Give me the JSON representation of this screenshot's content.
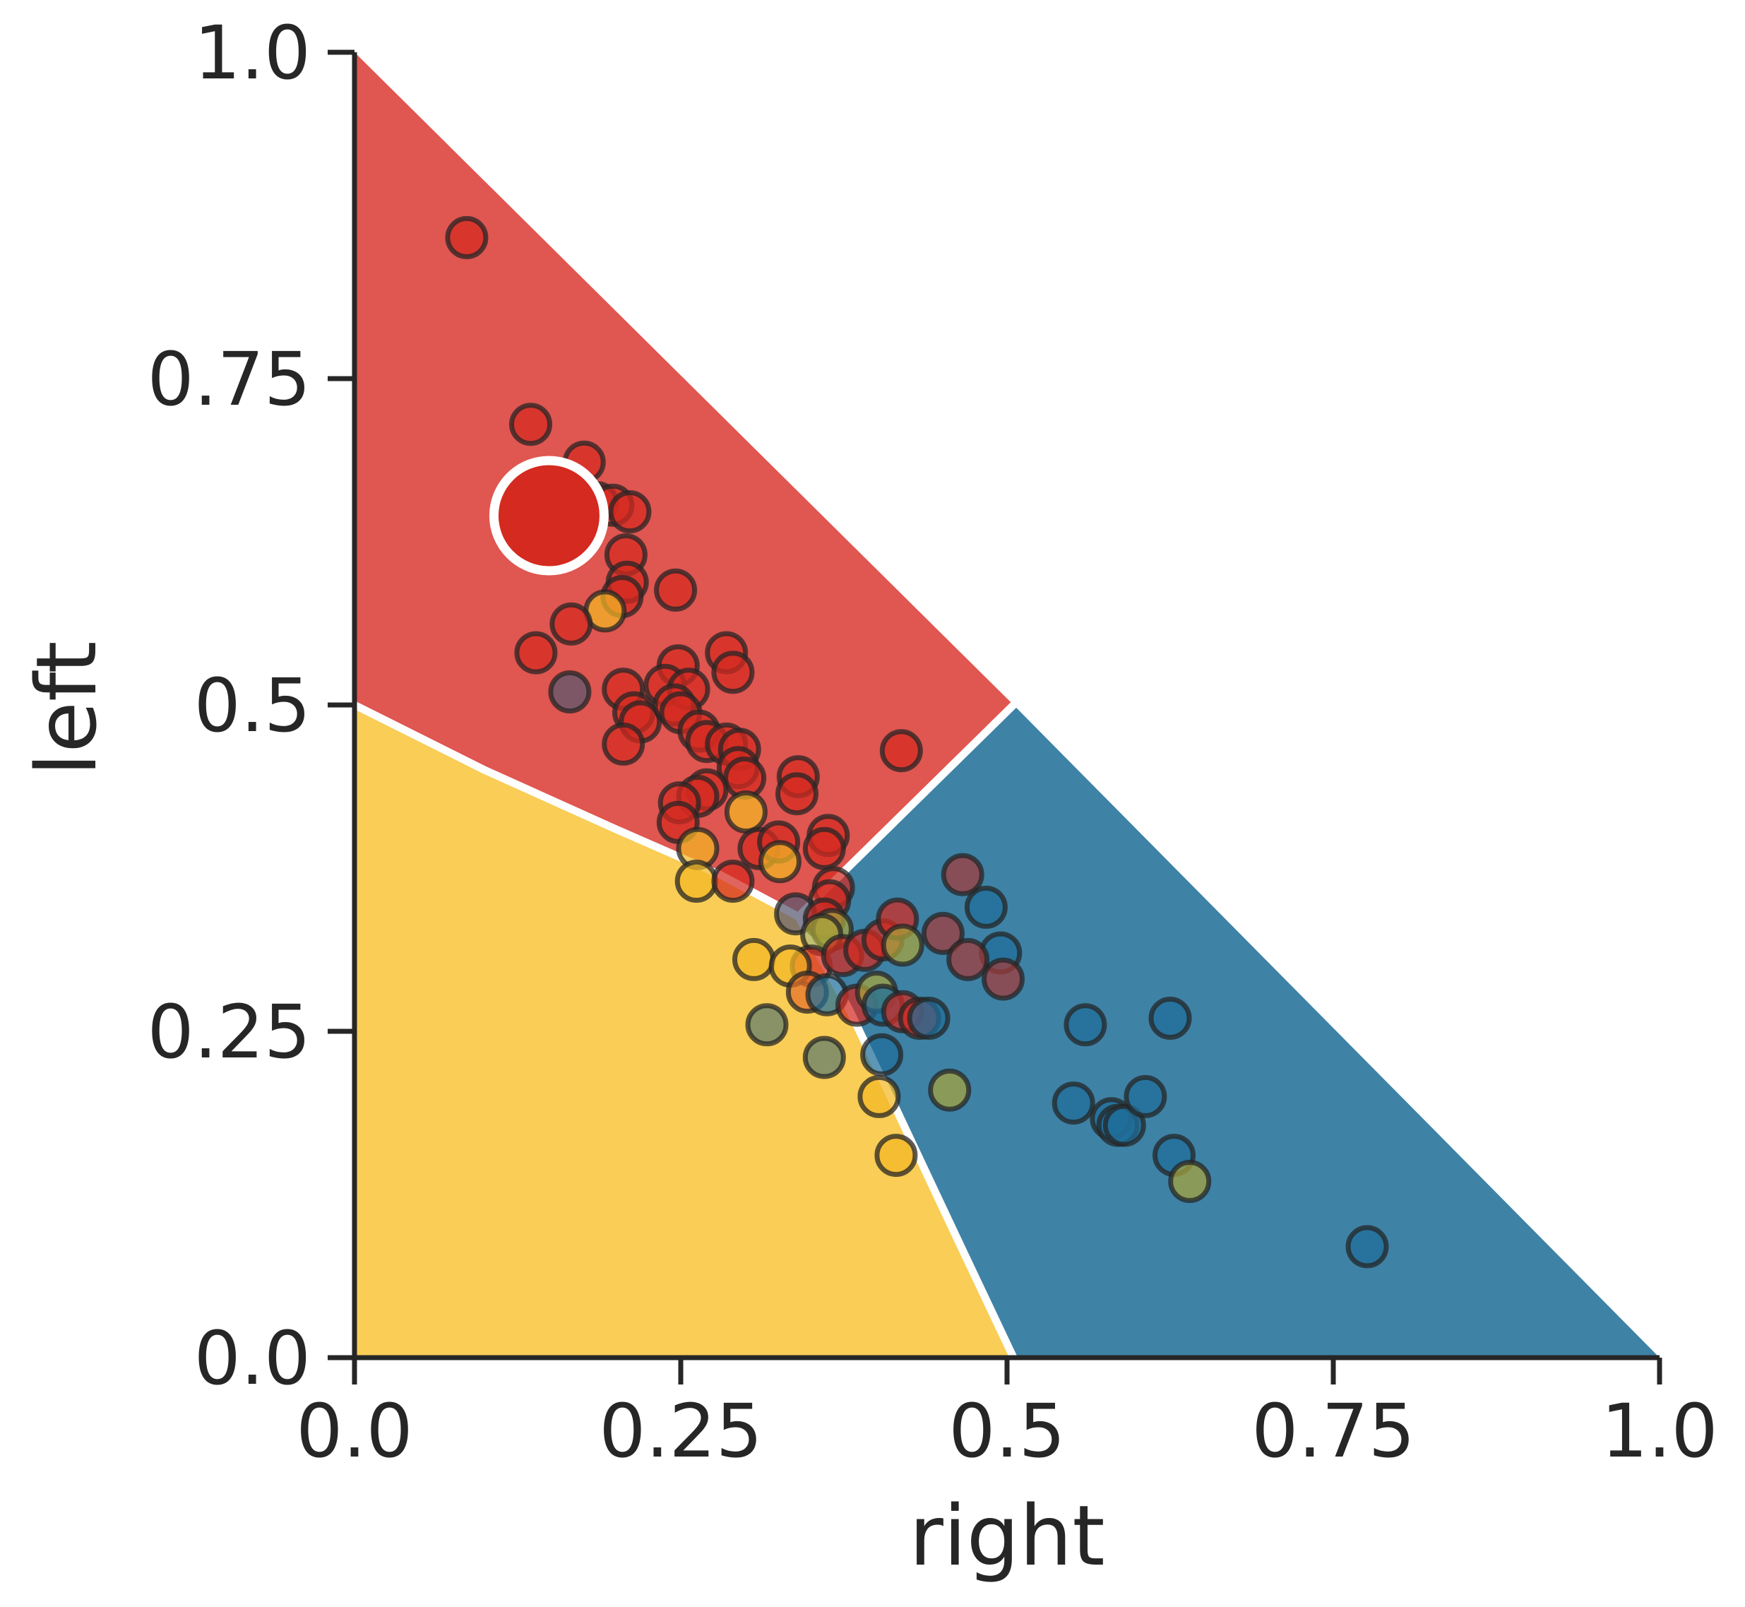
{
  "chart_data": {
    "type": "scatter",
    "title": "",
    "xlabel": "right",
    "ylabel": "left",
    "xlim": [
      0,
      1
    ],
    "ylim": [
      0,
      1
    ],
    "xticks": [
      "0.0",
      "0.25",
      "0.5",
      "0.75",
      "1.0"
    ],
    "yticks": [
      "0.0",
      "0.25",
      "0.5",
      "0.75",
      "1.0"
    ],
    "grid": false,
    "legend": "none",
    "colors": {
      "left": "#e05650",
      "mid": "#f9cd56",
      "right": "#3e82a6",
      "boundary": "#ffffff",
      "point_red": "#d42a20",
      "point_yellow": "#f2b724",
      "point_blue": "#1f6e9a",
      "point_dark": "#585870",
      "point_olive": "#a8a53c",
      "point_green": "#5c7c6c",
      "point_orange": "#e36f2a",
      "point_darkred": "#a43a3a",
      "marker_edge": "#262626"
    },
    "region_boundaries": {
      "left_mid": [
        [
          0,
          0.5
        ],
        [
          0.1,
          0.45
        ],
        [
          0.2,
          0.405
        ],
        [
          0.28,
          0.37
        ],
        [
          0.34,
          0.338
        ]
      ],
      "left_right": [
        [
          0.34,
          0.338
        ],
        [
          0.505,
          0.5
        ]
      ],
      "mid_right": [
        [
          0.34,
          0.338
        ],
        [
          0.38,
          0.265
        ],
        [
          0.42,
          0.18
        ],
        [
          0.46,
          0.095
        ],
        [
          0.505,
          0.0
        ]
      ]
    },
    "highlight_point": {
      "x": 0.149,
      "y": 0.645,
      "color": "#d42a20"
    },
    "points": [
      {
        "x": 0.086,
        "y": 0.858,
        "c": "point_red"
      },
      {
        "x": 0.135,
        "y": 0.715,
        "c": "point_red"
      },
      {
        "x": 0.176,
        "y": 0.686,
        "c": "point_red"
      },
      {
        "x": 0.186,
        "y": 0.655,
        "c": "point_red"
      },
      {
        "x": 0.198,
        "y": 0.653,
        "c": "point_red"
      },
      {
        "x": 0.211,
        "y": 0.648,
        "c": "point_red"
      },
      {
        "x": 0.208,
        "y": 0.615,
        "c": "point_red"
      },
      {
        "x": 0.209,
        "y": 0.594,
        "c": "point_red"
      },
      {
        "x": 0.205,
        "y": 0.583,
        "c": "point_red"
      },
      {
        "x": 0.246,
        "y": 0.588,
        "c": "point_red"
      },
      {
        "x": 0.192,
        "y": 0.572,
        "c": "point_yellow"
      },
      {
        "x": 0.166,
        "y": 0.562,
        "c": "point_red"
      },
      {
        "x": 0.139,
        "y": 0.54,
        "c": "point_red"
      },
      {
        "x": 0.165,
        "y": 0.51,
        "c": "point_dark"
      },
      {
        "x": 0.206,
        "y": 0.512,
        "c": "point_red"
      },
      {
        "x": 0.214,
        "y": 0.494,
        "c": "point_red"
      },
      {
        "x": 0.219,
        "y": 0.487,
        "c": "point_red"
      },
      {
        "x": 0.206,
        "y": 0.47,
        "c": "point_red"
      },
      {
        "x": 0.248,
        "y": 0.53,
        "c": "point_red"
      },
      {
        "x": 0.238,
        "y": 0.515,
        "c": "point_red"
      },
      {
        "x": 0.256,
        "y": 0.512,
        "c": "point_red"
      },
      {
        "x": 0.245,
        "y": 0.5,
        "c": "point_red"
      },
      {
        "x": 0.25,
        "y": 0.494,
        "c": "point_red"
      },
      {
        "x": 0.285,
        "y": 0.54,
        "c": "point_red"
      },
      {
        "x": 0.29,
        "y": 0.525,
        "c": "point_red"
      },
      {
        "x": 0.264,
        "y": 0.48,
        "c": "point_red"
      },
      {
        "x": 0.27,
        "y": 0.472,
        "c": "point_red"
      },
      {
        "x": 0.285,
        "y": 0.47,
        "c": "point_red"
      },
      {
        "x": 0.295,
        "y": 0.466,
        "c": "point_red"
      },
      {
        "x": 0.294,
        "y": 0.452,
        "c": "point_red"
      },
      {
        "x": 0.299,
        "y": 0.444,
        "c": "point_red"
      },
      {
        "x": 0.27,
        "y": 0.435,
        "c": "point_red"
      },
      {
        "x": 0.263,
        "y": 0.43,
        "c": "point_red"
      },
      {
        "x": 0.249,
        "y": 0.425,
        "c": "point_red"
      },
      {
        "x": 0.248,
        "y": 0.41,
        "c": "point_red"
      },
      {
        "x": 0.3,
        "y": 0.418,
        "c": "point_yellow"
      },
      {
        "x": 0.34,
        "y": 0.445,
        "c": "point_red"
      },
      {
        "x": 0.339,
        "y": 0.432,
        "c": "point_red"
      },
      {
        "x": 0.419,
        "y": 0.465,
        "c": "point_red"
      },
      {
        "x": 0.263,
        "y": 0.39,
        "c": "point_yellow"
      },
      {
        "x": 0.262,
        "y": 0.365,
        "c": "point_yellow"
      },
      {
        "x": 0.29,
        "y": 0.365,
        "c": "point_red"
      },
      {
        "x": 0.31,
        "y": 0.39,
        "c": "point_red"
      },
      {
        "x": 0.325,
        "y": 0.395,
        "c": "point_red"
      },
      {
        "x": 0.326,
        "y": 0.38,
        "c": "point_yellow"
      },
      {
        "x": 0.363,
        "y": 0.4,
        "c": "point_red"
      },
      {
        "x": 0.36,
        "y": 0.39,
        "c": "point_red"
      },
      {
        "x": 0.367,
        "y": 0.36,
        "c": "point_red"
      },
      {
        "x": 0.364,
        "y": 0.35,
        "c": "point_red"
      },
      {
        "x": 0.338,
        "y": 0.34,
        "c": "point_dark"
      },
      {
        "x": 0.36,
        "y": 0.336,
        "c": "point_red"
      },
      {
        "x": 0.366,
        "y": 0.328,
        "c": "point_olive"
      },
      {
        "x": 0.358,
        "y": 0.324,
        "c": "point_olive"
      },
      {
        "x": 0.35,
        "y": 0.3,
        "c": "point_red"
      },
      {
        "x": 0.374,
        "y": 0.308,
        "c": "point_red"
      },
      {
        "x": 0.391,
        "y": 0.312,
        "c": "point_red"
      },
      {
        "x": 0.405,
        "y": 0.32,
        "c": "point_red"
      },
      {
        "x": 0.416,
        "y": 0.336,
        "c": "point_red"
      },
      {
        "x": 0.42,
        "y": 0.316,
        "c": "point_olive"
      },
      {
        "x": 0.306,
        "y": 0.305,
        "c": "point_yellow"
      },
      {
        "x": 0.334,
        "y": 0.3,
        "c": "point_yellow"
      },
      {
        "x": 0.347,
        "y": 0.28,
        "c": "point_orange"
      },
      {
        "x": 0.362,
        "y": 0.278,
        "c": "point_blue"
      },
      {
        "x": 0.385,
        "y": 0.27,
        "c": "point_red"
      },
      {
        "x": 0.4,
        "y": 0.28,
        "c": "point_olive"
      },
      {
        "x": 0.405,
        "y": 0.27,
        "c": "point_blue"
      },
      {
        "x": 0.42,
        "y": 0.265,
        "c": "point_red"
      },
      {
        "x": 0.433,
        "y": 0.26,
        "c": "point_red"
      },
      {
        "x": 0.44,
        "y": 0.26,
        "c": "point_blue"
      },
      {
        "x": 0.451,
        "y": 0.325,
        "c": "point_darkred"
      },
      {
        "x": 0.466,
        "y": 0.37,
        "c": "point_darkred"
      },
      {
        "x": 0.484,
        "y": 0.345,
        "c": "point_blue"
      },
      {
        "x": 0.495,
        "y": 0.31,
        "c": "point_blue"
      },
      {
        "x": 0.47,
        "y": 0.305,
        "c": "point_darkred"
      },
      {
        "x": 0.497,
        "y": 0.29,
        "c": "point_darkred"
      },
      {
        "x": 0.316,
        "y": 0.255,
        "c": "point_green"
      },
      {
        "x": 0.36,
        "y": 0.23,
        "c": "point_green"
      },
      {
        "x": 0.404,
        "y": 0.232,
        "c": "point_blue"
      },
      {
        "x": 0.456,
        "y": 0.205,
        "c": "point_olive"
      },
      {
        "x": 0.402,
        "y": 0.2,
        "c": "point_yellow"
      },
      {
        "x": 0.415,
        "y": 0.155,
        "c": "point_yellow"
      },
      {
        "x": 0.56,
        "y": 0.255,
        "c": "point_blue"
      },
      {
        "x": 0.625,
        "y": 0.26,
        "c": "point_blue"
      },
      {
        "x": 0.551,
        "y": 0.195,
        "c": "point_blue"
      },
      {
        "x": 0.58,
        "y": 0.183,
        "c": "point_blue"
      },
      {
        "x": 0.585,
        "y": 0.178,
        "c": "point_blue"
      },
      {
        "x": 0.59,
        "y": 0.178,
        "c": "point_blue"
      },
      {
        "x": 0.606,
        "y": 0.2,
        "c": "point_blue"
      },
      {
        "x": 0.628,
        "y": 0.155,
        "c": "point_blue"
      },
      {
        "x": 0.64,
        "y": 0.135,
        "c": "point_olive"
      },
      {
        "x": 0.776,
        "y": 0.085,
        "c": "point_blue"
      }
    ]
  }
}
